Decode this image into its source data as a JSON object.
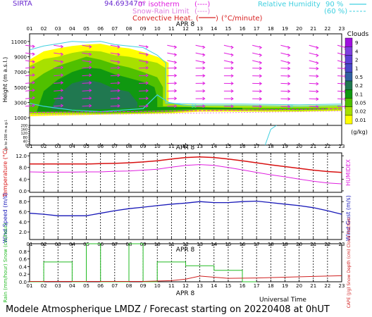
{
  "header": {
    "station": "SIRTA",
    "coords": "94.69347m",
    "legend": {
      "isotherm": "0° isotherm",
      "isotherm_sym": "(----)",
      "snow_rain": "Snow-Rain Limit",
      "snow_rain_sym": "(----)",
      "convective": "Convective Heat.",
      "convective_unit": "(°C/minute)",
      "rh90": "Relative Humidity",
      "rh90_val": "90 %",
      "rh60_val": "(60 %)"
    }
  },
  "hours": [
    "01",
    "02",
    "03",
    "04",
    "05",
    "06",
    "07",
    "08",
    "09",
    "10",
    "11",
    "12",
    "13",
    "14",
    "15",
    "16",
    "17",
    "18",
    "19",
    "20",
    "21",
    "22",
    "23"
  ],
  "date_label": "APR  8",
  "xlabel": "Universal Time",
  "footer": "Modele Atmospherique LMDZ / Forecast starting on 20220408 at 0hUT",
  "colors": {
    "temp": "#d81010",
    "humidex": "#e020e0",
    "wind": "#1818b8",
    "rain": "#22bb22",
    "snow": "#d02020",
    "cloud_scale": [
      "#ffff00",
      "#a8e000",
      "#50c000",
      "#109810",
      "#207850",
      "#3060a0",
      "#4848c8",
      "#6040d8",
      "#8040e0",
      "#a010e0"
    ]
  },
  "chart_data": [
    {
      "type": "heatmap",
      "name": "clouds",
      "ylabel": "Height (m a.s.l.)",
      "ylabel2": "Up to 200 m a.g.l.",
      "yticks": [
        1000,
        3000,
        5000,
        7000,
        9000,
        11000
      ],
      "ylim": [
        0,
        12000
      ],
      "colorbar": {
        "title": "Clouds",
        "unit": "(g/kg)",
        "ticks": [
          "9",
          "4",
          "2",
          "1",
          "0.5",
          "0.2",
          "0.1",
          "0.05",
          "0.02",
          "0.01"
        ]
      },
      "regions": [
        {
          "level": 0,
          "points": [
            [
              1,
              1200
            ],
            [
              1,
              8600
            ],
            [
              2,
              9700
            ],
            [
              3,
              10100
            ],
            [
              4,
              10400
            ],
            [
              5,
              10600
            ],
            [
              6,
              10700
            ],
            [
              7,
              10300
            ],
            [
              8,
              10100
            ],
            [
              9,
              9600
            ],
            [
              10,
              9000
            ],
            [
              10.8,
              8200
            ],
            [
              10.8,
              2800
            ],
            [
              13,
              2700
            ],
            [
              16,
              2700
            ],
            [
              20,
              2600
            ],
            [
              23,
              2700
            ],
            [
              23,
              1900
            ],
            [
              20,
              1800
            ],
            [
              16,
              1800
            ],
            [
              13,
              1800
            ],
            [
              11,
              1600
            ],
            [
              9,
              1500
            ],
            [
              6,
              1400
            ],
            [
              3,
              1300
            ]
          ]
        },
        {
          "level": 1,
          "points": [
            [
              1,
              1500
            ],
            [
              1,
              7800
            ],
            [
              2,
              8700
            ],
            [
              3,
              9000
            ],
            [
              4,
              9500
            ],
            [
              5,
              9800
            ],
            [
              6,
              9700
            ],
            [
              7,
              9200
            ],
            [
              8,
              9000
            ],
            [
              9,
              8600
            ],
            [
              10,
              8200
            ],
            [
              10.6,
              7500
            ],
            [
              10.6,
              3000
            ],
            [
              13,
              2500
            ],
            [
              16,
              2500
            ],
            [
              20,
              2400
            ],
            [
              23,
              2500
            ],
            [
              23,
              2000
            ],
            [
              20,
              1900
            ],
            [
              16,
              1900
            ],
            [
              13,
              2000
            ],
            [
              11,
              1700
            ],
            [
              9,
              1600
            ],
            [
              6,
              1500
            ],
            [
              3,
              1500
            ]
          ]
        },
        {
          "level": 2,
          "points": [
            [
              1,
              1700
            ],
            [
              1,
              5500
            ],
            [
              2,
              6800
            ],
            [
              3,
              7800
            ],
            [
              4,
              8400
            ],
            [
              5,
              9000
            ],
            [
              6,
              8600
            ],
            [
              7,
              8000
            ],
            [
              8,
              7600
            ],
            [
              9,
              7000
            ],
            [
              10,
              6300
            ],
            [
              10.4,
              5000
            ],
            [
              10.4,
              2500
            ],
            [
              13,
              2400
            ],
            [
              16,
              2300
            ],
            [
              20,
              2300
            ],
            [
              22,
              2300
            ],
            [
              22,
              2100
            ],
            [
              20,
              2000
            ],
            [
              16,
              2100
            ],
            [
              13,
              2100
            ],
            [
              11,
              1800
            ],
            [
              9,
              1700
            ],
            [
              6,
              1600
            ],
            [
              3,
              1700
            ]
          ]
        },
        {
          "level": 3,
          "points": [
            [
              1.5,
              1800
            ],
            [
              2,
              4500
            ],
            [
              3,
              6000
            ],
            [
              4,
              7000
            ],
            [
              5,
              7600
            ],
            [
              6,
              7400
            ],
            [
              7,
              6700
            ],
            [
              8,
              6200
            ],
            [
              9,
              5700
            ],
            [
              9.8,
              5000
            ],
            [
              10,
              3600
            ],
            [
              10,
              2400
            ],
            [
              12,
              2400
            ],
            [
              14,
              2300
            ],
            [
              16,
              2300
            ],
            [
              16,
              2100
            ],
            [
              14,
              2100
            ],
            [
              12,
              2100
            ],
            [
              9,
              1900
            ],
            [
              6,
              1800
            ],
            [
              3,
              1800
            ]
          ]
        },
        {
          "level": 4,
          "points": [
            [
              2.5,
              2100
            ],
            [
              3,
              4000
            ],
            [
              4,
              5500
            ],
            [
              5,
              6000
            ],
            [
              6,
              5600
            ],
            [
              7,
              4800
            ],
            [
              8,
              4400
            ],
            [
              8.6,
              3000
            ],
            [
              8.6,
              2300
            ],
            [
              6,
              2100
            ],
            [
              4,
              2100
            ]
          ]
        }
      ],
      "isotherm": [
        [
          1,
          1700
        ],
        [
          4,
          1750
        ],
        [
          8,
          1800
        ],
        [
          12,
          1900
        ],
        [
          16,
          2000
        ],
        [
          20,
          2100
        ],
        [
          23,
          2200
        ]
      ],
      "snowrain": [
        [
          1,
          1400
        ],
        [
          4,
          1450
        ],
        [
          8,
          1500
        ],
        [
          12,
          1600
        ],
        [
          16,
          1700
        ],
        [
          20,
          1800
        ],
        [
          23,
          1900
        ]
      ],
      "rh90": [
        [
          1,
          2900
        ],
        [
          2,
          2500
        ],
        [
          4,
          2000
        ],
        [
          6,
          1800
        ],
        [
          9,
          2200
        ],
        [
          10,
          4000
        ],
        [
          10.8,
          3000
        ],
        [
          12,
          2600
        ],
        [
          16,
          2600
        ],
        [
          20,
          2500
        ],
        [
          23,
          2600
        ]
      ],
      "rh60": [
        [
          1,
          9900
        ],
        [
          2,
          10400
        ],
        [
          3,
          10700
        ],
        [
          4,
          11000
        ],
        [
          5,
          10900
        ],
        [
          6,
          11000
        ],
        [
          7,
          10600
        ],
        [
          9,
          10200
        ],
        [
          10,
          9200
        ],
        [
          10.6,
          8200
        ],
        [
          10.6,
          2900
        ],
        [
          13,
          2800
        ],
        [
          16,
          2800
        ],
        [
          20,
          2700
        ],
        [
          23,
          2800
        ]
      ],
      "rh_labels": [
        {
          "x": 12.4,
          "y": 2600,
          "t": "90"
        },
        {
          "x": 19.2,
          "y": 2600,
          "t": "90"
        }
      ],
      "low_rh": [
        [
          17.6,
          0.0
        ],
        [
          17.8,
          0.4
        ],
        [
          18.0,
          0.8
        ],
        [
          18.4,
          1.0
        ]
      ],
      "wind_arrows_hours": [
        1,
        2,
        3,
        4,
        5,
        6,
        7,
        8,
        9,
        10,
        11,
        12,
        13,
        14,
        15,
        16,
        17,
        18,
        19,
        20,
        21,
        22,
        23
      ],
      "wind_arrows_levels": [
        10500,
        9500,
        8500,
        7500,
        6500,
        5500,
        4500,
        3500,
        2500
      ]
    },
    {
      "type": "line",
      "name": "temperature",
      "ylabel": "Temperature (°C)",
      "ylabel2": "HUMIDEX",
      "yticks": [
        0,
        4.0,
        8.0,
        12.0
      ],
      "ylim": [
        -0.5,
        13
      ],
      "x": [
        1,
        2,
        3,
        4,
        5,
        6,
        7,
        8,
        9,
        10,
        11,
        12,
        13,
        14,
        15,
        16,
        17,
        18,
        19,
        20,
        21,
        22,
        23
      ],
      "series": [
        {
          "values": [
            9.2,
            9.2,
            9.2,
            9.2,
            9.2,
            9.3,
            9.4,
            9.6,
            9.9,
            10.3,
            10.9,
            11.4,
            11.6,
            11.4,
            10.9,
            10.3,
            9.6,
            8.9,
            8.3,
            7.7,
            7.1,
            6.6,
            6.3
          ]
        },
        {
          "values": [
            6.5,
            6.4,
            6.4,
            6.4,
            6.5,
            6.5,
            6.7,
            6.8,
            7.1,
            7.4,
            8.1,
            8.7,
            9.0,
            8.7,
            8.0,
            7.2,
            6.3,
            5.5,
            4.8,
            4.0,
            3.3,
            2.7,
            2.4
          ]
        }
      ]
    },
    {
      "type": "line",
      "name": "wind",
      "ylabel": "Wind Speed (m/s)",
      "ylabel2": "Wind Gust (m/s)",
      "yticks": [
        2,
        4,
        6,
        8
      ],
      "ylim": [
        0.5,
        9
      ],
      "x": [
        1,
        2,
        3,
        4,
        5,
        6,
        7,
        8,
        9,
        10,
        11,
        12,
        13,
        14,
        15,
        16,
        17,
        18,
        19,
        20,
        21,
        22,
        23
      ],
      "series": [
        {
          "values": [
            5.7,
            5.5,
            5.2,
            5.2,
            5.2,
            5.7,
            6.2,
            6.6,
            6.9,
            7.2,
            7.5,
            7.7,
            8.0,
            7.8,
            7.8,
            8.0,
            8.1,
            7.8,
            7.5,
            7.2,
            6.8,
            6.2,
            5.5
          ]
        }
      ]
    },
    {
      "type": "bar",
      "name": "precip",
      "ylabel": "Rain (mm/hour) Snow (cm/hour)",
      "ylabel2": "CAPE (J/g) Snow Depth (cm) Cloud Fraction",
      "yticks": [
        0,
        0.2,
        0.4,
        0.6,
        0.8
      ],
      "ylim": [
        0,
        1
      ],
      "steps": [
        [
          1,
          2,
          0.0
        ],
        [
          2,
          4,
          0.52
        ],
        [
          4,
          5,
          0.0
        ],
        [
          5,
          6,
          1.0
        ],
        [
          6,
          8,
          0.0
        ],
        [
          8,
          9,
          1.0
        ],
        [
          9,
          10,
          0.0
        ],
        [
          10,
          12,
          0.52
        ],
        [
          12,
          14,
          0.42
        ],
        [
          14,
          16,
          0.3
        ],
        [
          16,
          17,
          0.0
        ]
      ],
      "snow_depth": [
        [
          1,
          0.01
        ],
        [
          9,
          0.01
        ],
        [
          11,
          0.03
        ],
        [
          12,
          0.07
        ],
        [
          13,
          0.15
        ],
        [
          14,
          0.12
        ],
        [
          15,
          0.09
        ],
        [
          17,
          0.1
        ],
        [
          19,
          0.12
        ],
        [
          21,
          0.14
        ],
        [
          23,
          0.16
        ]
      ]
    }
  ]
}
